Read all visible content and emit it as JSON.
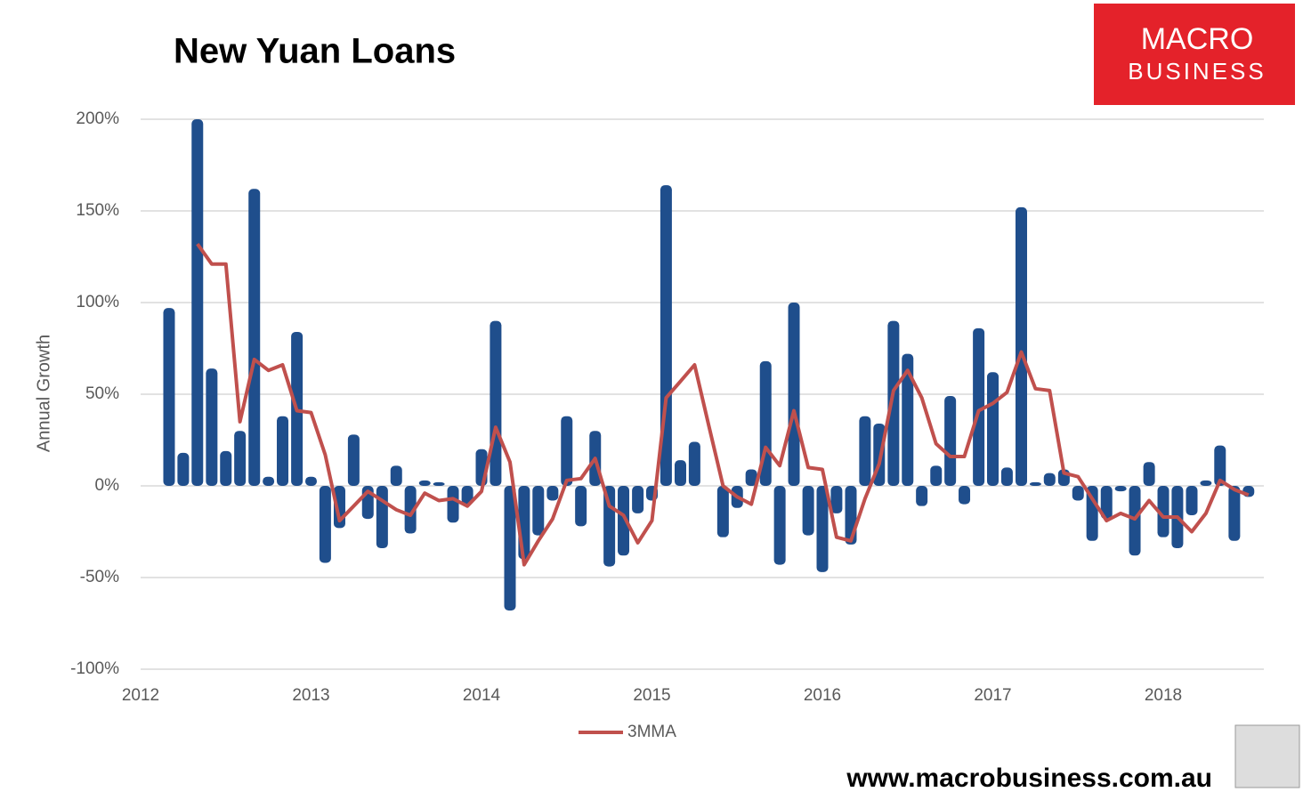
{
  "chart_data": {
    "type": "bar",
    "title": "New Yuan Loans",
    "y_label": "Annual Growth",
    "x": [
      2012.167,
      2012.25,
      2012.333,
      2012.417,
      2012.5,
      2012.583,
      2012.667,
      2012.75,
      2012.833,
      2012.917,
      2013,
      2013.083,
      2013.167,
      2013.25,
      2013.333,
      2013.417,
      2013.5,
      2013.583,
      2013.667,
      2013.75,
      2013.833,
      2013.917,
      2014,
      2014.083,
      2014.167,
      2014.25,
      2014.333,
      2014.417,
      2014.5,
      2014.583,
      2014.667,
      2014.75,
      2014.833,
      2014.917,
      2015,
      2015.083,
      2015.167,
      2015.25,
      2015.333,
      2015.417,
      2015.5,
      2015.583,
      2015.667,
      2015.75,
      2015.833,
      2015.917,
      2016,
      2016.083,
      2016.167,
      2016.25,
      2016.333,
      2016.417,
      2016.5,
      2016.583,
      2016.667,
      2016.75,
      2016.833,
      2016.917,
      2017,
      2017.083,
      2017.167,
      2017.25,
      2017.333,
      2017.417,
      2017.5,
      2017.583,
      2017.667,
      2017.75,
      2017.833,
      2017.917,
      2018,
      2018.083,
      2018.167,
      2018.25,
      2018.333,
      2018.417,
      2018.5
    ],
    "series": [
      {
        "type": "bar",
        "color": "#1f4e8c",
        "values": [
          97,
          18,
          200,
          64,
          19,
          30,
          162,
          5,
          38,
          84,
          5,
          -42,
          -23,
          28,
          -18,
          -34,
          11,
          -26,
          3,
          2,
          -20,
          -10,
          20,
          90,
          -68,
          -40,
          -27,
          -8,
          38,
          -22,
          30,
          -44,
          -38,
          -15,
          -8,
          164,
          14,
          24,
          null,
          -28,
          -12,
          9,
          68,
          -43,
          100,
          -27,
          -47,
          -15,
          -32,
          38,
          34,
          90,
          72,
          -11,
          11,
          49,
          -10,
          86,
          62,
          10,
          152,
          2,
          7,
          9,
          -8,
          -30,
          -18,
          -3,
          -38,
          13,
          -28,
          -34,
          -16,
          3,
          22,
          -30,
          -6
        ]
      },
      {
        "type": "line",
        "name": "3MMA",
        "color": "#c0504d",
        "values": [
          null,
          null,
          132,
          121,
          121,
          35,
          69,
          63,
          66,
          41,
          40,
          17,
          -19,
          -11,
          -3,
          -8,
          -13,
          -16,
          -4,
          -8,
          -7,
          -11,
          -3,
          32,
          13,
          -43,
          -30,
          -18,
          3,
          4,
          15,
          -11,
          -16,
          -31,
          -19,
          48,
          57,
          66,
          33,
          0,
          -6,
          -10,
          21,
          11,
          41,
          10,
          9,
          -28,
          -30,
          -7,
          12,
          52,
          63,
          48,
          23,
          16,
          16,
          41,
          45,
          51,
          73,
          53,
          52,
          7,
          5,
          -7,
          -19,
          -15,
          -18,
          -8,
          -17,
          -17,
          -25,
          -15,
          3,
          -2,
          -5
        ]
      }
    ],
    "xlim": [
      2012,
      2018.59
    ],
    "xticks": [
      2012,
      2013,
      2014,
      2015,
      2016,
      2017,
      2018
    ],
    "ylim": [
      -100,
      200
    ],
    "yticks": [
      {
        "value": -100,
        "label": "-100%"
      },
      {
        "value": -50,
        "label": "-50%"
      },
      {
        "value": 0,
        "label": "0%"
      },
      {
        "value": 50,
        "label": "50%"
      },
      {
        "value": 100,
        "label": "100%"
      },
      {
        "value": 150,
        "label": "150%"
      },
      {
        "value": 200,
        "label": "200%"
      }
    ],
    "grid": true,
    "legend": "bottom"
  },
  "logo": {
    "line1": "MACRO",
    "line2": "BUSINESS"
  },
  "footer": "www.macrobusiness.com.au"
}
